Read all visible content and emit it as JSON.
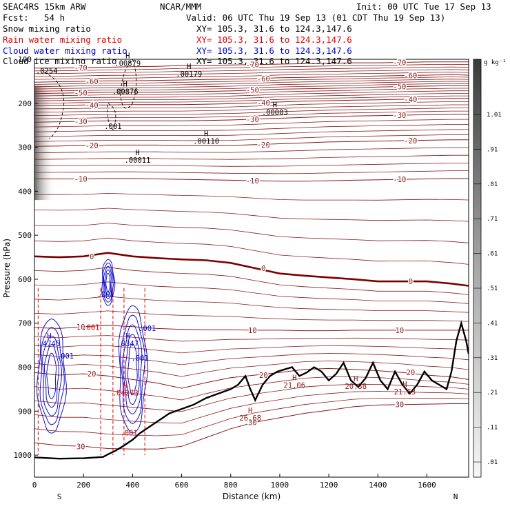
{
  "header": {
    "title_left": "SEAC4RS 15km ARW",
    "center": "NCAR/MMM",
    "init": "Init: 00 UTC Tue 17 Sep 13",
    "fcst_label": "Fcst:",
    "fcst_value": "54 h",
    "valid": "Valid: 06 UTC Thu 19 Sep 13 (01 CDT Thu 19 Sep 13)"
  },
  "fields": [
    {
      "label": "Snow mixing ratio",
      "xy": "XY= 105.3, 31.6 to 124.3,147.6",
      "color": "#000000"
    },
    {
      "label": "Rain water mixing ratio",
      "xy": "XY= 105.3, 31.6 to 124.3,147.6",
      "color": "#e00000"
    },
    {
      "label": "Cloud water mixing ratio",
      "xy": "XY= 105.3, 31.6 to 124.3,147.6",
      "color": "#0000cc"
    },
    {
      "label": "Cloud ice mixing ratio",
      "xy": "XY= 105.3, 31.6 to 124.3,147.6",
      "color": "#000000"
    }
  ],
  "colors": {
    "temperature": "#8b1a1a",
    "zero_isotherm": "#7a0000",
    "rain": "#e00000",
    "cloud": "#1010d0",
    "terrain": "#000000",
    "snow": "#000000"
  },
  "chart_data": {
    "type": "line",
    "title": "",
    "xlabel": "Distance (km)",
    "ylabel": "Pressure (hPa)",
    "xlim": [
      0,
      1770
    ],
    "ylim": [
      1050,
      100
    ],
    "x_ticks": [
      "0",
      "200",
      "400",
      "600",
      "800",
      "1000",
      "1200",
      "1400",
      "1600"
    ],
    "y_ticks": [
      "100",
      "200",
      "300",
      "400",
      "500",
      "600",
      "700",
      "800",
      "900",
      "1000"
    ],
    "x_end_labels": {
      "left": "S",
      "right": "N"
    },
    "colorbar": {
      "unit": "g kg⁻¹",
      "labels": [
        "1.01",
        ".91",
        ".81",
        ".71",
        ".61",
        ".51",
        ".41",
        ".31",
        ".21",
        ".11",
        ".01"
      ]
    },
    "terrain_surface": {
      "name": "surface",
      "x": [
        0,
        100,
        200,
        280,
        300,
        330,
        360,
        400,
        430,
        470,
        510,
        550,
        600,
        650,
        700,
        750,
        800,
        830,
        860,
        880,
        900,
        930,
        960,
        990,
        1020,
        1050,
        1080,
        1110,
        1140,
        1170,
        1200,
        1230,
        1260,
        1290,
        1320,
        1350,
        1380,
        1410,
        1440,
        1470,
        1500,
        1530,
        1560,
        1590,
        1620,
        1650,
        1680,
        1700,
        1720,
        1740,
        1760,
        1770
      ],
      "p": [
        1005,
        1008,
        1007,
        1004,
        998,
        990,
        980,
        965,
        950,
        935,
        920,
        905,
        895,
        885,
        870,
        860,
        850,
        840,
        820,
        850,
        875,
        840,
        820,
        810,
        805,
        800,
        820,
        812,
        800,
        810,
        830,
        815,
        790,
        830,
        845,
        825,
        790,
        830,
        850,
        810,
        840,
        860,
        840,
        810,
        830,
        840,
        850,
        810,
        740,
        700,
        740,
        770
      ]
    },
    "isotherms": [
      {
        "label": "-70",
        "p": [
          120,
          120,
          119,
          118,
          117,
          116,
          114,
          114,
          113,
          112,
          111,
          110,
          109,
          108,
          108,
          107,
          106,
          106,
          106
        ]
      },
      {
        "label": "-60",
        "p": [
          152,
          151,
          150,
          149,
          149,
          148,
          147,
          146,
          145,
          144,
          142,
          141,
          140,
          139,
          138,
          137,
          136,
          135,
          136
        ]
      },
      {
        "label": "-50",
        "p": [
          178,
          177,
          176,
          175,
          175,
          175,
          174,
          173,
          172,
          170,
          168,
          167,
          166,
          165,
          163,
          162,
          161,
          160,
          160
        ]
      },
      {
        "label": "-40",
        "p": [
          205,
          205,
          204,
          204,
          203,
          203,
          203,
          202,
          201,
          199,
          197,
          195,
          194,
          193,
          192,
          191,
          190,
          189,
          189
        ]
      },
      {
        "label": "-30",
        "p": [
          243,
          242,
          241,
          240,
          240,
          240,
          240,
          239,
          238,
          236,
          234,
          232,
          230,
          229,
          228,
          227,
          226,
          225,
          225
        ]
      },
      {
        "label": "-20",
        "p": [
          298,
          297,
          296,
          295,
          295,
          295,
          296,
          296,
          296,
          294,
          292,
          290,
          288,
          287,
          286,
          285,
          284,
          283,
          283
        ]
      },
      {
        "label": "-10",
        "p": [
          372,
          372,
          372,
          371,
          371,
          372,
          373,
          374,
          375,
          376,
          377,
          377,
          376,
          375,
          374,
          373,
          372,
          371,
          371
        ]
      },
      {
        "label": "0",
        "p": [
          548,
          550,
          548,
          540,
          548,
          552,
          555,
          557,
          563,
          575,
          587,
          592,
          596,
          600,
          605,
          605,
          605,
          610,
          615
        ],
        "bold": true
      },
      {
        "label": "10",
        "p": [
          710,
          712,
          708,
          705,
          708,
          712,
          714,
          715,
          715,
          716,
          716,
          717,
          717,
          716,
          716,
          716,
          716,
          716,
          716
        ]
      },
      {
        "label": "20",
        "p": [
          812,
          818,
          815,
          820,
          828,
          836,
          848,
          835,
          824,
          818,
          812,
          805,
          803,
          805,
          808,
          812,
          818,
          822,
          828
        ]
      },
      {
        "label": "30",
        "p": [
          972,
          978,
          980,
          985,
          986,
          986,
          980,
          960,
          940,
          925,
          915,
          905,
          898,
          890,
          886,
          885,
          884,
          883,
          883
        ]
      }
    ],
    "isotherm_x": [
      0,
      100,
      200,
      300,
      400,
      500,
      600,
      700,
      800,
      900,
      1000,
      1100,
      1200,
      1300,
      1400,
      1500,
      1600,
      1700,
      1770
    ],
    "maxima": [
      {
        "label": "H",
        "value": ".00879",
        "x": 380,
        "p": 98
      },
      {
        "label": "H",
        "value": ".00179",
        "x": 630,
        "p": 122
      },
      {
        "label": "H",
        "value": ".00876",
        "x": 370,
        "p": 162
      },
      {
        "label": "H",
        "value": ".00003",
        "x": 980,
        "p": 209
      },
      {
        "label": "H",
        "value": ".00110",
        "x": 700,
        "p": 275
      },
      {
        "label": "H",
        "value": ".00011",
        "x": 420,
        "p": 318
      },
      {
        "label": "H",
        "value": ".4745",
        "x": 60,
        "p": 735
      },
      {
        "label": "H",
        "value": ".8347",
        "x": 380,
        "p": 735
      },
      {
        "label": "H",
        "value": ".04273",
        "x": 370,
        "p": 847
      },
      {
        "label": "H",
        "value": "21.06",
        "x": 1060,
        "p": 830
      },
      {
        "label": "H",
        "value": "20.38",
        "x": 1310,
        "p": 832
      },
      {
        "label": "H",
        "value": "21.63",
        "x": 1510,
        "p": 845
      },
      {
        "label": "H",
        "value": "26.68",
        "x": 880,
        "p": 904
      }
    ],
    "other_labels": [
      {
        "text": ".0254",
        "x": 50,
        "p": 132,
        "color": "#000000"
      },
      {
        "text": ".001",
        "x": 320,
        "p": 258,
        "color": "#000000"
      },
      {
        "text": ".001",
        "x": 290,
        "p": 640,
        "color": "#0000cc"
      },
      {
        "text": ".001",
        "x": 460,
        "p": 718,
        "color": "#0000cc"
      },
      {
        "text": ".001",
        "x": 125,
        "p": 780,
        "color": "#0000cc"
      },
      {
        "text": ".001",
        "x": 430,
        "p": 785,
        "color": "#0000cc"
      },
      {
        "text": ".001",
        "x": 230,
        "p": 715,
        "color": "#cc0000"
      },
      {
        "text": ".001",
        "x": 385,
        "p": 955,
        "color": "#cc0000"
      }
    ],
    "rain_profiles_x": [
      15,
      270,
      320,
      365,
      450
    ],
    "cloud_cells": [
      {
        "name": "cell-south",
        "x": 70,
        "p_top": 690,
        "p_bot": 950
      },
      {
        "name": "cell-mid",
        "x": 300,
        "p_top": 555,
        "p_bot": 660
      },
      {
        "name": "cell-north",
        "x": 400,
        "p_top": 660,
        "p_bot": 950
      }
    ]
  }
}
